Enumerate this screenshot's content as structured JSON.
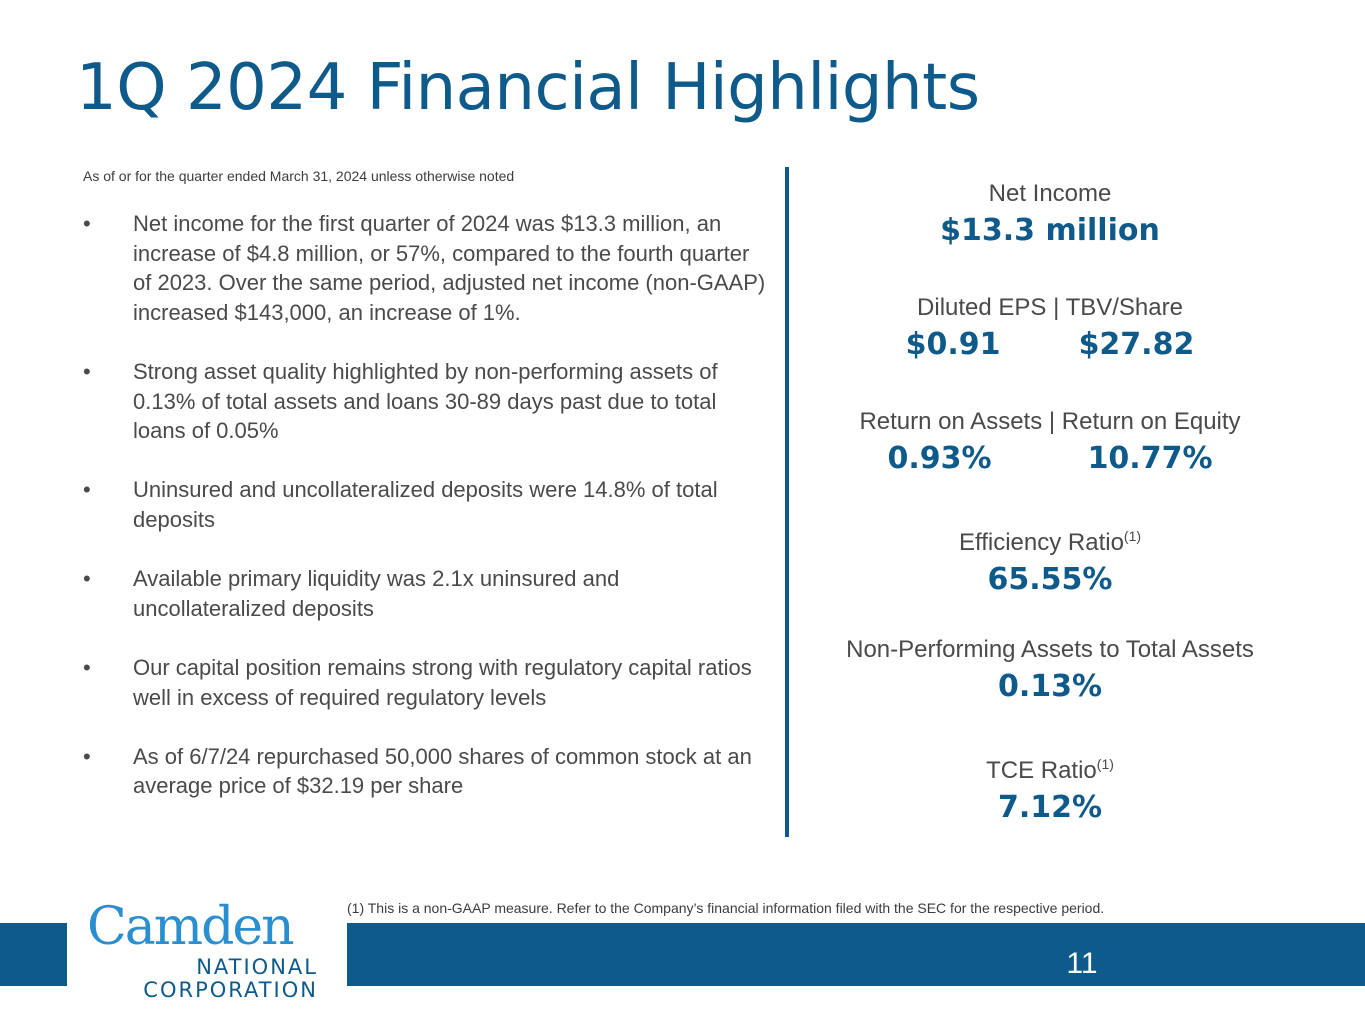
{
  "slide": {
    "title": "1Q 2024 Financial Highlights",
    "subtitle": "As of or for the quarter ended March 31, 2024 unless otherwise noted",
    "page_number": "11",
    "footnote": "(1) This is a non-GAAP measure. Refer to the Company’s financial information filed with the SEC for the respective period."
  },
  "bullet_symbol": "•",
  "bullets": [
    "Net income for the first quarter of 2024 was $13.3 million, an increase of $4.8 million, or 57%, compared to the fourth quarter of 2023. Over the same period, adjusted net income (non-GAAP) increased $143,000, an increase of 1%.",
    "Strong asset quality highlighted by non-performing assets of 0.13% of total assets and loans 30-89 days past due to total loans of 0.05%",
    "Uninsured and uncollateralized deposits were 14.8% of total deposits",
    "Available primary liquidity was 2.1x uninsured and uncollateralized deposits",
    "Our capital position remains strong with regulatory capital ratios well in excess of required regulatory levels",
    "As of 6/7/24 repurchased 50,000 shares of common stock at an average price of $32.19 per share"
  ],
  "metrics": {
    "net_income": {
      "label": "Net Income",
      "value": "$13.3 million"
    },
    "eps_tbv": {
      "label": "Diluted EPS | TBV/Share",
      "value_left": "$0.91",
      "value_right": "$27.82"
    },
    "roa_roe": {
      "label": "Return on Assets | Return on Equity",
      "value_left": "0.93%",
      "value_right": "10.77%"
    },
    "efficiency": {
      "label": "Efficiency Ratio",
      "footnote_mark": "(1)",
      "value": "65.55%"
    },
    "npa": {
      "label": "Non-Performing Assets to Total Assets",
      "value": "0.13%"
    },
    "tce": {
      "label": "TCE Ratio",
      "footnote_mark": "(1)",
      "value": "7.12%"
    }
  },
  "logo": {
    "name": "Camden",
    "line1": "NATIONAL",
    "line2": "CORPORATION"
  },
  "colors": {
    "brand_blue": "#0e5a8a",
    "logo_light_blue": "#2a8fd0",
    "body_text": "#4a4a4a"
  }
}
